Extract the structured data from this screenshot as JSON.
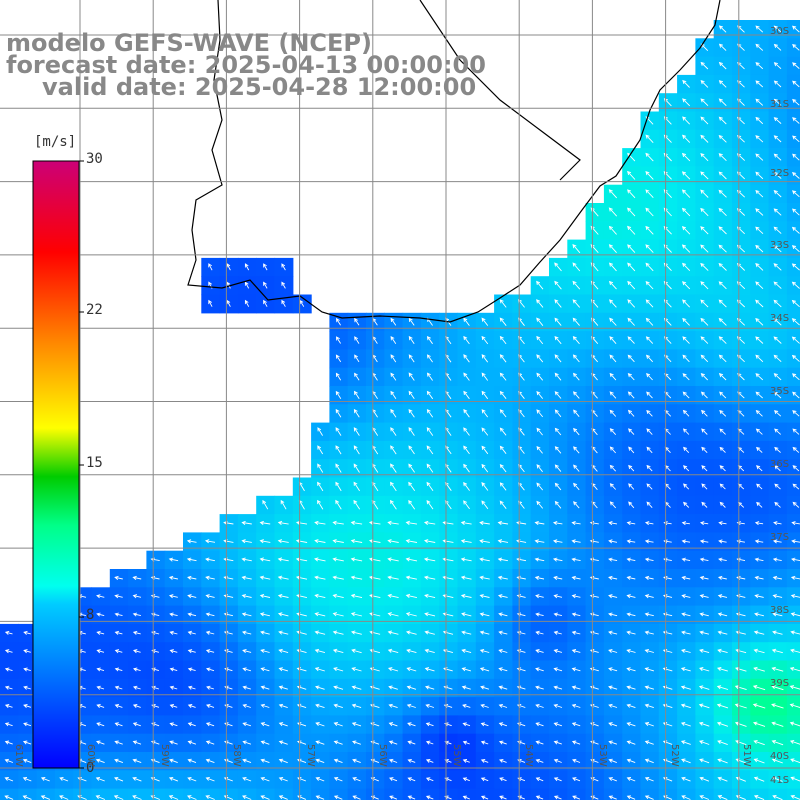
{
  "title": {
    "line1": "modelo GEFS-WAVE (NCEP)",
    "line2": "forecast date: 2025-04-13 00:00:00",
    "line3": "valid date: 2025-04-28 12:00:00"
  },
  "colorbar": {
    "unit": "[m/s]",
    "range": [
      0,
      30
    ],
    "ticks": [
      "30",
      "22",
      "15",
      "8",
      "0"
    ],
    "stops": [
      "#0000ff",
      "#00aaff",
      "#00ffee",
      "#00dd00",
      "#ffff00",
      "#ff7700",
      "#ff0000",
      "#cc0088"
    ]
  },
  "lat_labels": [
    "30S",
    "31S",
    "32S",
    "33S",
    "34S",
    "35S",
    "36S",
    "37S",
    "38S",
    "39S",
    "40S",
    "41S"
  ],
  "lon_labels": [
    "61W",
    "60W",
    "59W",
    "58W",
    "57W",
    "56W",
    "55W",
    "54W",
    "53W",
    "52W",
    "51W"
  ],
  "colors": {
    "land": "#ffffff",
    "coast": "#000000",
    "grid": "#888888",
    "arrow": "#ffffff",
    "title": "#888888"
  }
}
